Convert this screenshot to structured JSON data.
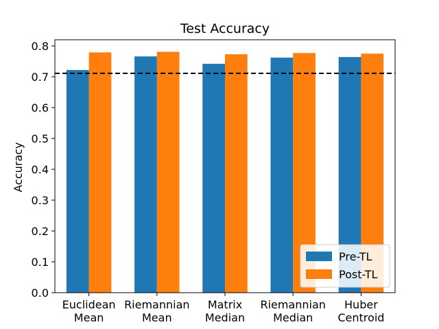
{
  "chart_data": {
    "type": "bar",
    "title": "Test Accuracy",
    "ylabel": "Accuracy",
    "xlabel": "",
    "ylim": [
      0,
      0.82
    ],
    "yticks": [
      "0.0",
      "0.1",
      "0.2",
      "0.3",
      "0.4",
      "0.5",
      "0.6",
      "0.7",
      "0.8"
    ],
    "categories": [
      [
        "Euclidean",
        "Mean"
      ],
      [
        "Riemannian",
        "Mean"
      ],
      [
        "Matrix",
        "Median"
      ],
      [
        "Riemannian",
        "Median"
      ],
      [
        "Huber",
        "Centroid"
      ]
    ],
    "series": [
      {
        "name": "Pre-TL",
        "color": "#1f77b4",
        "values": [
          0.722,
          0.766,
          0.742,
          0.762,
          0.764
        ]
      },
      {
        "name": "Post-TL",
        "color": "#ff7f0e",
        "values": [
          0.779,
          0.781,
          0.773,
          0.777,
          0.775
        ]
      }
    ],
    "reference_line": {
      "y": 0.711,
      "style": "dashed",
      "color": "#000000"
    },
    "legend": {
      "placement": "lower-right"
    },
    "grid": false
  }
}
